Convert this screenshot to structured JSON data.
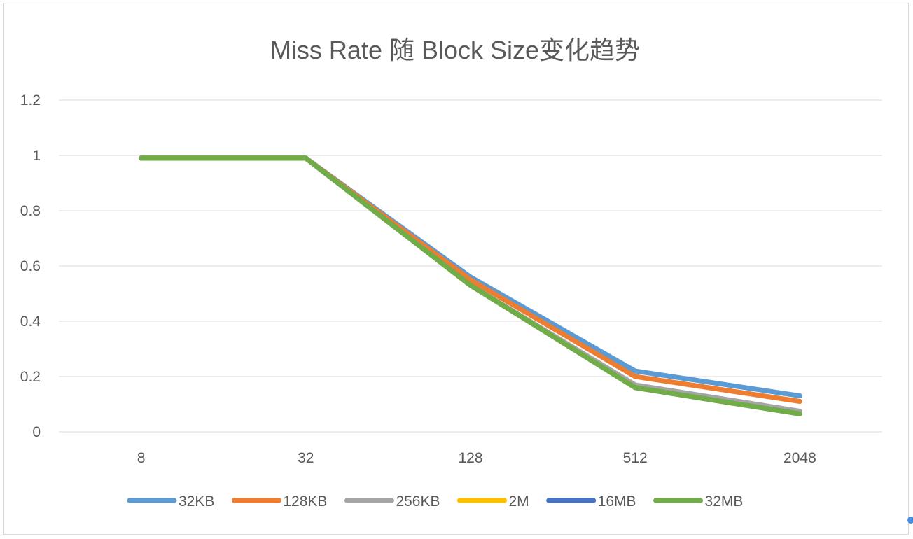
{
  "chart_data": {
    "type": "line",
    "title": "Miss Rate 随 Block Size变化趋势",
    "categories": [
      "8",
      "32",
      "128",
      "512",
      "2048"
    ],
    "yticks": [
      "0",
      "0.2",
      "0.4",
      "0.6",
      "0.8",
      "1",
      "1.2"
    ],
    "ylim": [
      0,
      1.2
    ],
    "grid": true,
    "legend_position": "bottom",
    "series": [
      {
        "name": "32KB",
        "color": "#5b9bd5",
        "values": [
          0.99,
          0.99,
          0.56,
          0.22,
          0.13
        ]
      },
      {
        "name": "128KB",
        "color": "#ed7d31",
        "values": [
          0.99,
          0.99,
          0.55,
          0.2,
          0.11
        ]
      },
      {
        "name": "256KB",
        "color": "#a5a5a5",
        "values": [
          0.99,
          0.99,
          0.53,
          0.17,
          0.075
        ]
      },
      {
        "name": "2M",
        "color": "#ffc000",
        "values": [
          0.99,
          0.99,
          0.53,
          0.16,
          0.065
        ]
      },
      {
        "name": "16MB",
        "color": "#4472c4",
        "values": [
          0.99,
          0.99,
          0.53,
          0.16,
          0.065
        ]
      },
      {
        "name": "32MB",
        "color": "#70ad47",
        "values": [
          0.99,
          0.99,
          0.53,
          0.16,
          0.065
        ]
      }
    ]
  }
}
